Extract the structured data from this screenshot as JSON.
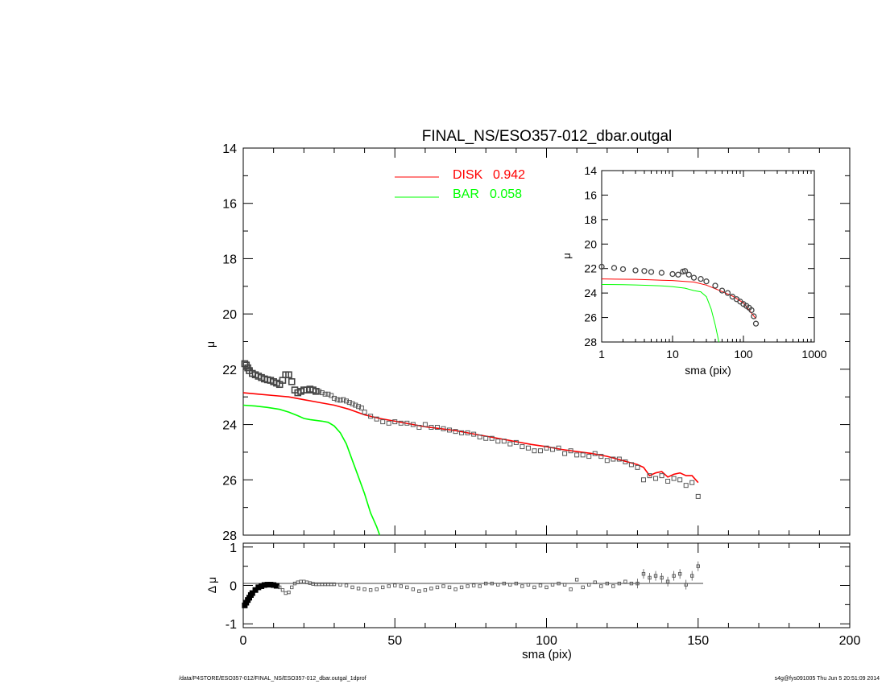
{
  "chart_data": [
    {
      "panel": "main",
      "type": "scatter",
      "title": "FINAL_NS/ESO357-012_dbar.outgal",
      "xlabel": "",
      "ylabel": "μ",
      "xlim": [
        0,
        200
      ],
      "ylim": [
        28,
        14
      ],
      "y_inverted": true,
      "yticks": [
        "14",
        "16",
        "18",
        "20",
        "22",
        "24",
        "26",
        "28"
      ],
      "legend": [
        {
          "name": "DISK",
          "value": "0.942",
          "color": "#ff0000"
        },
        {
          "name": "BAR",
          "value": "0.058",
          "color": "#00ff00"
        }
      ],
      "series": [
        {
          "name": "data",
          "marker": "open-square",
          "x": [
            0.5,
            1,
            1.5,
            2,
            3,
            4,
            5,
            6,
            7,
            8,
            9,
            10,
            11,
            12,
            13,
            14,
            15,
            16,
            17,
            18,
            19,
            20,
            21,
            22,
            23,
            24,
            25,
            26,
            27,
            28,
            29,
            30,
            31,
            32,
            33,
            34,
            35,
            36,
            37,
            38,
            39,
            40,
            42,
            44,
            46,
            48,
            50,
            52,
            54,
            56,
            58,
            60,
            62,
            64,
            66,
            68,
            70,
            72,
            74,
            76,
            78,
            80,
            82,
            84,
            86,
            88,
            90,
            92,
            94,
            96,
            98,
            100,
            102,
            104,
            106,
            108,
            110,
            112,
            114,
            116,
            118,
            120,
            122,
            124,
            126,
            128,
            130,
            132,
            134,
            136,
            138,
            140,
            142,
            144,
            146,
            148,
            150
          ],
          "y": [
            21.8,
            21.85,
            21.95,
            22.05,
            22.15,
            22.2,
            22.25,
            22.3,
            22.35,
            22.38,
            22.4,
            22.45,
            22.5,
            22.55,
            22.4,
            22.2,
            22.2,
            22.45,
            22.75,
            22.85,
            22.8,
            22.75,
            22.75,
            22.72,
            22.75,
            22.8,
            22.8,
            22.85,
            22.9,
            22.9,
            22.95,
            23.05,
            23.1,
            23.12,
            23.1,
            23.15,
            23.2,
            23.25,
            23.3,
            23.35,
            23.4,
            23.55,
            23.7,
            23.8,
            23.9,
            23.95,
            23.9,
            23.95,
            23.95,
            24.0,
            24.1,
            24.0,
            24.1,
            24.1,
            24.15,
            24.2,
            24.25,
            24.3,
            24.3,
            24.35,
            24.45,
            24.5,
            24.5,
            24.6,
            24.6,
            24.7,
            24.65,
            24.8,
            24.85,
            24.95,
            24.95,
            24.85,
            24.9,
            24.85,
            25.05,
            24.95,
            25.1,
            25.1,
            25.15,
            25.05,
            25.15,
            25.3,
            25.25,
            25.25,
            25.35,
            25.45,
            25.55,
            26.0,
            25.85,
            25.95,
            25.85,
            26.05,
            25.95,
            26.0,
            26.2,
            26.1,
            26.6
          ]
        },
        {
          "name": "DISK",
          "color": "#ff0000",
          "x": [
            0,
            5,
            10,
            15,
            20,
            25,
            30,
            35,
            40,
            45,
            50,
            55,
            60,
            65,
            70,
            75,
            80,
            85,
            90,
            95,
            100,
            105,
            110,
            115,
            120,
            125,
            130,
            132,
            134,
            136,
            138,
            140,
            142,
            144,
            146,
            148,
            150
          ],
          "y": [
            22.85,
            22.9,
            22.95,
            23.0,
            23.1,
            23.2,
            23.3,
            23.45,
            23.65,
            23.78,
            23.88,
            23.98,
            24.08,
            24.15,
            24.22,
            24.32,
            24.42,
            24.52,
            24.62,
            24.72,
            24.8,
            24.9,
            24.98,
            25.05,
            25.15,
            25.3,
            25.45,
            25.55,
            25.85,
            25.75,
            25.7,
            25.9,
            25.8,
            25.75,
            25.85,
            25.85,
            26.1
          ]
        },
        {
          "name": "BAR",
          "color": "#00ff00",
          "x": [
            0,
            4,
            8,
            12,
            15,
            18,
            20,
            22,
            24,
            26,
            28,
            30,
            32,
            34,
            36,
            38,
            40,
            42,
            44,
            45
          ],
          "y": [
            23.3,
            23.33,
            23.38,
            23.45,
            23.55,
            23.68,
            23.78,
            23.82,
            23.85,
            23.88,
            23.92,
            24.05,
            24.3,
            24.7,
            25.3,
            25.9,
            26.5,
            27.2,
            27.7,
            28.0
          ]
        }
      ]
    },
    {
      "panel": "inset",
      "type": "scatter",
      "title": "",
      "xlabel": "sma (pix)",
      "ylabel": "μ",
      "xscale": "log",
      "xlim": [
        1,
        1000
      ],
      "ylim": [
        28,
        14
      ],
      "y_inverted": true,
      "xticks": [
        "1",
        "10",
        "100",
        "1000"
      ],
      "yticks": [
        "14",
        "16",
        "18",
        "20",
        "22",
        "24",
        "26",
        "28"
      ],
      "series": [
        {
          "name": "data",
          "marker": "open-circle",
          "x": [
            1,
            1.5,
            2,
            3,
            4,
            5,
            7,
            10,
            12,
            14,
            15,
            17,
            20,
            25,
            30,
            40,
            50,
            60,
            70,
            80,
            90,
            100,
            110,
            120,
            130,
            140,
            150
          ],
          "y": [
            21.85,
            21.95,
            22.05,
            22.15,
            22.2,
            22.28,
            22.35,
            22.45,
            22.5,
            22.25,
            22.2,
            22.5,
            22.75,
            22.85,
            23.05,
            23.4,
            23.8,
            24.0,
            24.3,
            24.5,
            24.7,
            24.9,
            25.05,
            25.2,
            25.4,
            25.9,
            26.5
          ]
        },
        {
          "name": "DISK",
          "color": "#ff0000",
          "x": [
            1,
            2,
            3,
            5,
            7,
            10,
            15,
            20,
            30,
            40,
            50,
            70,
            100,
            150
          ],
          "y": [
            22.85,
            22.87,
            22.88,
            22.92,
            22.95,
            22.98,
            23.05,
            23.1,
            23.35,
            23.65,
            23.88,
            24.25,
            24.8,
            26.1
          ]
        },
        {
          "name": "BAR",
          "color": "#00ff00",
          "x": [
            1,
            2,
            3,
            5,
            7,
            10,
            15,
            20,
            25,
            30,
            35,
            40,
            45
          ],
          "y": [
            23.3,
            23.32,
            23.34,
            23.38,
            23.42,
            23.48,
            23.6,
            23.8,
            23.9,
            24.3,
            25.3,
            26.6,
            28.0
          ]
        }
      ]
    },
    {
      "panel": "residuals",
      "type": "scatter",
      "title": "",
      "xlabel": "sma (pix)",
      "ylabel": "Δ μ",
      "xlim": [
        0,
        200
      ],
      "ylim": [
        -1.1,
        1.1
      ],
      "xticks": [
        "0",
        "50",
        "100",
        "150",
        "200"
      ],
      "yticks": [
        "1",
        "0",
        "-1"
      ],
      "series": [
        {
          "name": "residual",
          "marker": "open-square",
          "x": [
            0.5,
            1,
            1.5,
            2,
            2.5,
            3,
            4,
            5,
            6,
            7,
            8,
            9,
            10,
            11,
            12,
            13,
            14,
            15,
            16,
            17,
            18,
            19,
            20,
            21,
            22,
            23,
            24,
            25,
            26,
            27,
            28,
            29,
            30,
            32,
            34,
            36,
            38,
            40,
            42,
            44,
            46,
            48,
            50,
            52,
            54,
            56,
            58,
            60,
            62,
            64,
            66,
            68,
            70,
            72,
            74,
            76,
            78,
            80,
            82,
            84,
            86,
            88,
            90,
            92,
            94,
            96,
            98,
            100,
            102,
            104,
            106,
            108,
            110,
            112,
            114,
            116,
            118,
            120,
            122,
            124,
            126,
            128,
            130,
            132,
            134,
            136,
            138,
            140,
            142,
            144,
            146,
            148,
            150
          ],
          "y": [
            -0.52,
            -0.45,
            -0.38,
            -0.32,
            -0.25,
            -0.2,
            -0.12,
            -0.05,
            -0.02,
            0.01,
            0.02,
            0.02,
            0.01,
            -0.01,
            -0.05,
            -0.12,
            -0.2,
            -0.18,
            -0.05,
            0.05,
            0.08,
            0.1,
            0.1,
            0.08,
            0.06,
            0.04,
            0.03,
            0.03,
            0.03,
            0.03,
            0.03,
            0.03,
            0.03,
            0.02,
            0.0,
            -0.05,
            -0.08,
            -0.1,
            -0.12,
            -0.1,
            -0.05,
            -0.02,
            0.0,
            -0.02,
            -0.05,
            -0.1,
            -0.15,
            -0.12,
            -0.08,
            -0.05,
            -0.02,
            -0.05,
            -0.1,
            -0.05,
            -0.02,
            0.0,
            -0.02,
            0.05,
            0.05,
            0.02,
            0.05,
            0.02,
            0.05,
            -0.02,
            0.02,
            -0.05,
            0.0,
            -0.05,
            0.02,
            0.05,
            0.02,
            -0.1,
            0.15,
            -0.05,
            0.02,
            0.08,
            -0.02,
            0.05,
            -0.02,
            0.05,
            0.1,
            0.05,
            0.05,
            0.3,
            0.2,
            0.25,
            0.2,
            0.1,
            0.25,
            0.3,
            0.02,
            0.25,
            0.5
          ]
        }
      ]
    }
  ],
  "footer": {
    "left": "/data/P4STORE/ESO357-012/FINAL_NS/ESO357-012_dbar.outgal_1dprof",
    "right": "s4g@fys091005  Thu Jun  5 20:51:09 2014"
  }
}
